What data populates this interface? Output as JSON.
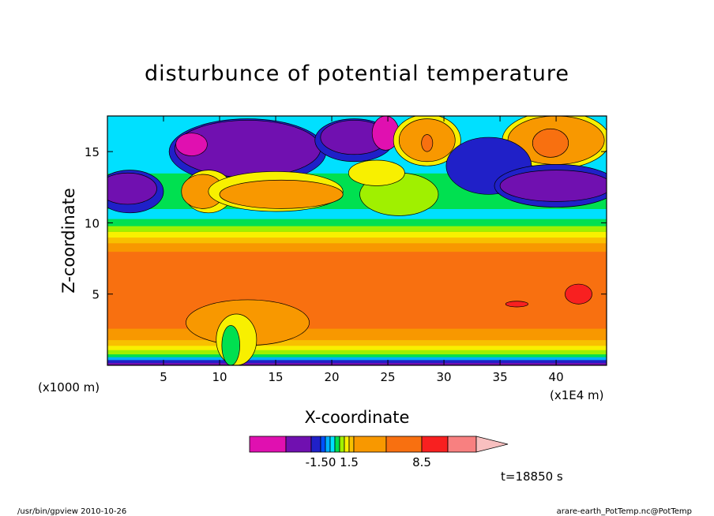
{
  "chart_data": {
    "type": "heatmap",
    "title": "disturbunce of potential temperature",
    "xlabel": "X-coordinate",
    "ylabel": "Z-coordinate",
    "x_units": "(x1E4 m)",
    "y_units": "(x1000 m)",
    "x_ticks": [
      5,
      10,
      15,
      20,
      25,
      30,
      35,
      40
    ],
    "y_ticks": [
      5,
      10,
      15
    ],
    "xlim": [
      0,
      44.5
    ],
    "ylim": [
      0,
      17.5
    ],
    "time_label": "t=18850 s",
    "colorbar": {
      "labels": [
        "-1.50",
        "1.5",
        "8.5"
      ],
      "label_values": [
        -1.5,
        1.5,
        8.5
      ],
      "colors": [
        "#e010b0",
        "#7010b0",
        "#2020c8",
        "#0050ff",
        "#00b0ff",
        "#00e0ff",
        "#00e050",
        "#a0f000",
        "#f8f000",
        "#f8c000",
        "#f89800",
        "#f87010",
        "#f82020",
        "#f88080",
        "#f8c0c0"
      ]
    },
    "bands": [
      {
        "z0": 0.0,
        "z1": 0.2,
        "color": "#7010b0"
      },
      {
        "z0": 0.2,
        "z1": 0.4,
        "color": "#2020c8"
      },
      {
        "z0": 0.4,
        "z1": 0.6,
        "color": "#00b0ff"
      },
      {
        "z0": 0.6,
        "z1": 0.8,
        "color": "#00e050"
      },
      {
        "z0": 0.8,
        "z1": 1.1,
        "color": "#a0f000"
      },
      {
        "z0": 1.1,
        "z1": 1.4,
        "color": "#f8f000"
      },
      {
        "z0": 1.4,
        "z1": 1.8,
        "color": "#f8c000"
      },
      {
        "z0": 1.8,
        "z1": 2.6,
        "color": "#f89800"
      },
      {
        "z0": 2.6,
        "z1": 8.0,
        "color": "#f87010"
      },
      {
        "z0": 8.0,
        "z1": 8.6,
        "color": "#f89800"
      },
      {
        "z0": 8.6,
        "z1": 9.0,
        "color": "#f8c000"
      },
      {
        "z0": 9.0,
        "z1": 9.4,
        "color": "#f8f000"
      },
      {
        "z0": 9.4,
        "z1": 9.8,
        "color": "#a0f000"
      },
      {
        "z0": 9.8,
        "z1": 10.3,
        "color": "#00e050"
      },
      {
        "z0": 10.3,
        "z1": 11.0,
        "color": "#00e0ff"
      },
      {
        "z0": 11.0,
        "z1": 13.5,
        "color": "#00e050"
      },
      {
        "z0": 13.5,
        "z1": 17.5,
        "color": "#00e0ff"
      }
    ],
    "blobs": [
      {
        "x": 12.5,
        "z": 15.0,
        "rx": 7.0,
        "rz": 2.3,
        "color": "#2020c8"
      },
      {
        "x": 12.5,
        "z": 15.2,
        "rx": 6.5,
        "rz": 2.0,
        "color": "#7010b0"
      },
      {
        "x": 7.5,
        "z": 15.5,
        "rx": 1.4,
        "rz": 0.8,
        "color": "#e010b0"
      },
      {
        "x": 22.0,
        "z": 15.8,
        "rx": 3.5,
        "rz": 1.5,
        "color": "#2020c8"
      },
      {
        "x": 22.0,
        "z": 16.0,
        "rx": 3.0,
        "rz": 1.2,
        "color": "#7010b0"
      },
      {
        "x": 24.8,
        "z": 16.3,
        "rx": 1.2,
        "rz": 1.2,
        "color": "#e010b0"
      },
      {
        "x": 28.5,
        "z": 15.8,
        "rx": 3.0,
        "rz": 1.8,
        "color": "#f8f000"
      },
      {
        "x": 28.5,
        "z": 15.8,
        "rx": 2.5,
        "rz": 1.5,
        "color": "#f89800"
      },
      {
        "x": 28.5,
        "z": 15.6,
        "rx": 0.5,
        "rz": 0.6,
        "color": "#f87010"
      },
      {
        "x": 40.0,
        "z": 15.8,
        "rx": 4.8,
        "rz": 2.0,
        "color": "#f8f000"
      },
      {
        "x": 40.0,
        "z": 15.8,
        "rx": 4.3,
        "rz": 1.7,
        "color": "#f89800"
      },
      {
        "x": 39.5,
        "z": 15.6,
        "rx": 1.6,
        "rz": 1.0,
        "color": "#f87010"
      },
      {
        "x": 34.0,
        "z": 14.0,
        "rx": 3.8,
        "rz": 2.0,
        "color": "#2020c8"
      },
      {
        "x": 40.0,
        "z": 12.6,
        "rx": 5.5,
        "rz": 1.5,
        "color": "#2020c8"
      },
      {
        "x": 40.0,
        "z": 12.6,
        "rx": 5.0,
        "rz": 1.1,
        "color": "#7010b0"
      },
      {
        "x": 2.0,
        "z": 12.2,
        "rx": 3.0,
        "rz": 1.5,
        "color": "#2020c8"
      },
      {
        "x": 1.8,
        "z": 12.4,
        "rx": 2.6,
        "rz": 1.1,
        "color": "#7010b0"
      },
      {
        "x": 9.0,
        "z": 12.2,
        "rx": 2.2,
        "rz": 1.5,
        "color": "#f8f000"
      },
      {
        "x": 8.5,
        "z": 12.2,
        "rx": 1.9,
        "rz": 1.2,
        "color": "#f89800"
      },
      {
        "x": 15.0,
        "z": 12.2,
        "rx": 6.0,
        "rz": 1.4,
        "color": "#f8f000"
      },
      {
        "x": 15.5,
        "z": 12.0,
        "rx": 5.5,
        "rz": 1.0,
        "color": "#f89800"
      },
      {
        "x": 26.0,
        "z": 12.0,
        "rx": 3.5,
        "rz": 1.5,
        "color": "#a0f000"
      },
      {
        "x": 24.0,
        "z": 13.5,
        "rx": 2.5,
        "rz": 0.9,
        "color": "#f8f000"
      },
      {
        "x": 12.5,
        "z": 3.0,
        "rx": 5.5,
        "rz": 1.6,
        "color": "#f89800"
      },
      {
        "x": 11.5,
        "z": 1.8,
        "rx": 1.8,
        "rz": 1.8,
        "color": "#f8f000"
      },
      {
        "x": 11.0,
        "z": 1.4,
        "rx": 0.8,
        "rz": 1.4,
        "color": "#00e050"
      },
      {
        "x": 42.0,
        "z": 5.0,
        "rx": 1.2,
        "rz": 0.7,
        "color": "#f82020"
      },
      {
        "x": 36.5,
        "z": 4.3,
        "rx": 1.0,
        "rz": 0.2,
        "color": "#f82020"
      }
    ]
  },
  "footer": {
    "left": "/usr/bin/gpview   2010-10-26",
    "right": "arare-earth_PotTemp.nc@PotTemp"
  }
}
